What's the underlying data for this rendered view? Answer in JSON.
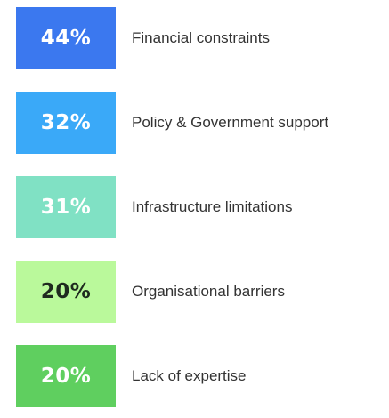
{
  "items": [
    {
      "percent": "44%",
      "label": "Financial constraints",
      "color": "#3b78ef",
      "text_color": "#ffffff"
    },
    {
      "percent": "32%",
      "label": "Policy & Government support",
      "color": "#3aa9f8",
      "text_color": "#ffffff"
    },
    {
      "percent": "31%",
      "label": "Infrastructure limitations",
      "color": "#80e1c4",
      "text_color": "#ffffff"
    },
    {
      "percent": "20%",
      "label": "Organisational barriers",
      "color": "#baf99b",
      "text_color": "#1f2a1f"
    },
    {
      "percent": "20%",
      "label": "Lack of expertise",
      "color": "#5fcf5f",
      "text_color": "#ffffff"
    }
  ]
}
